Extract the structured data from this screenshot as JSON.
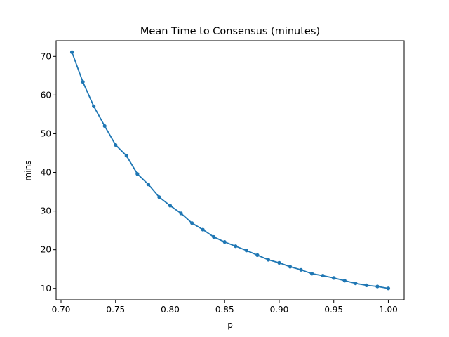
{
  "chart_data": {
    "type": "line",
    "title": "Mean Time to Consensus (minutes)",
    "xlabel": "p",
    "ylabel": "mins",
    "xlim": [
      0.6955,
      1.0145
    ],
    "ylim": [
      7.05,
      74.05
    ],
    "x_ticks": [
      0.7,
      0.75,
      0.8,
      0.85,
      0.9,
      0.95,
      1.0
    ],
    "x_tick_labels": [
      "0.70",
      "0.75",
      "0.80",
      "0.85",
      "0.90",
      "0.95",
      "1.00"
    ],
    "y_ticks": [
      10,
      20,
      30,
      40,
      50,
      60,
      70
    ],
    "y_tick_labels": [
      "10",
      "20",
      "30",
      "40",
      "50",
      "60",
      "70"
    ],
    "grid": false,
    "series": [
      {
        "color": "#1f77b4",
        "marker": "circle",
        "x": [
          0.71,
          0.72,
          0.73,
          0.74,
          0.75,
          0.76,
          0.77,
          0.78,
          0.79,
          0.8,
          0.81,
          0.82,
          0.83,
          0.84,
          0.85,
          0.86,
          0.87,
          0.88,
          0.89,
          0.9,
          0.91,
          0.92,
          0.93,
          0.94,
          0.95,
          0.96,
          0.97,
          0.98,
          0.99,
          1.0
        ],
        "y": [
          71.1,
          63.4,
          57.1,
          52.0,
          47.1,
          44.3,
          39.6,
          36.9,
          33.6,
          31.4,
          29.4,
          26.9,
          25.2,
          23.3,
          22.0,
          20.9,
          19.8,
          18.6,
          17.4,
          16.6,
          15.6,
          14.8,
          13.8,
          13.3,
          12.7,
          12.0,
          11.3,
          10.8,
          10.5,
          10.0
        ]
      }
    ]
  }
}
